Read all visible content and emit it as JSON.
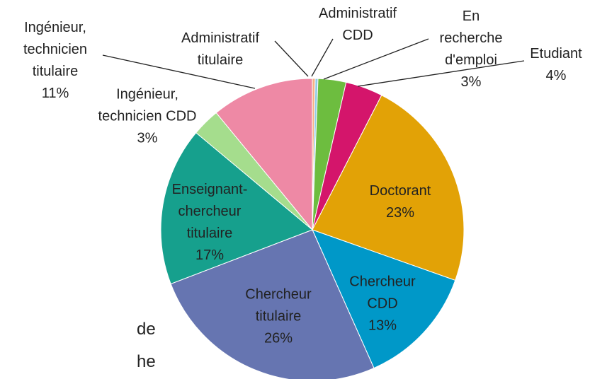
{
  "chart_data": {
    "type": "pie",
    "labels": [
      "Administratif titulaire",
      "Administratif CDD",
      "En recherche d'emploi",
      "Etudiant",
      "Doctorant",
      "Chercheur CDD",
      "Chercheur titulaire",
      "Enseignant-chercheur titulaire",
      "Ingénieur, technicien CDD",
      "Ingénieur, technicien titulaire"
    ],
    "values": [
      0.3,
      0.3,
      3,
      4,
      23,
      13,
      26,
      17,
      3,
      11
    ],
    "value_labels": [
      null,
      null,
      "3%",
      "4%",
      "23%",
      "13%",
      "26%",
      "17%",
      "3%",
      "11%"
    ],
    "colors": [
      "#f4b183",
      "#8fc9e6",
      "#6dbd3f",
      "#d4156b",
      "#e2a206",
      "#0098c8",
      "#6675b1",
      "#16a08d",
      "#a5dd8d",
      "#ee89a5"
    ]
  },
  "fragments": [
    "de",
    "he"
  ]
}
